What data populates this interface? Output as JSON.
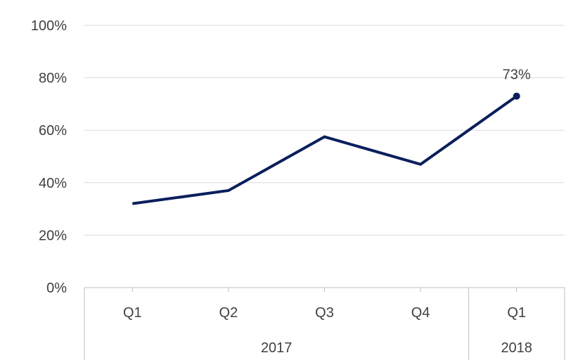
{
  "chart_data": {
    "type": "line",
    "title": "",
    "xlabel": "",
    "ylabel": "",
    "ylim": [
      0,
      100
    ],
    "y_ticks": [
      "0%",
      "20%",
      "40%",
      "60%",
      "80%",
      "100%"
    ],
    "categories": [
      "Q1",
      "Q2",
      "Q3",
      "Q4",
      "Q1"
    ],
    "groups": [
      {
        "label": "2017",
        "count": 4
      },
      {
        "label": "2018",
        "count": 1
      }
    ],
    "series": [
      {
        "values": [
          32,
          37,
          57.5,
          47,
          73
        ],
        "color": "#0b1f5c"
      }
    ],
    "annotations": [
      {
        "index": 4,
        "label": "73%"
      }
    ],
    "grid": true,
    "legend": "none"
  }
}
